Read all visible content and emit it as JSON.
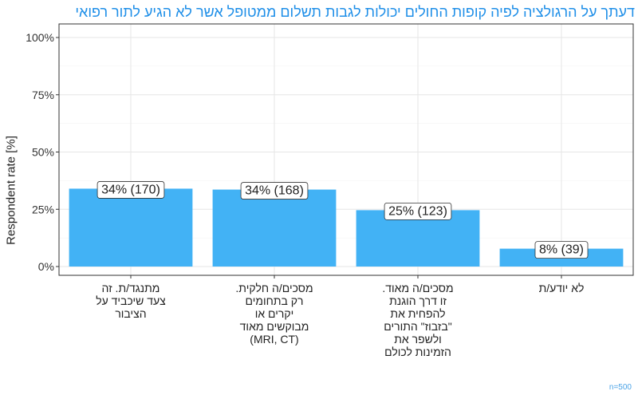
{
  "chart_data": {
    "type": "bar",
    "title": "דעתך על הרגולציה לפיה קופות החולים יכולות לגבות תשלום ממטופל אשר לא הגיע לתור רפואי",
    "ylabel": "Respondent rate [%]",
    "xlabel": "",
    "ylim": [
      0,
      1.05
    ],
    "yticks": [
      "0%",
      "25%",
      "50%",
      "75%",
      "100%"
    ],
    "categories": [
      "מתנגד/ת. זה\nצעד שיכביד על\nהציבור",
      "מסכים/ה חלקית.\nרק בתחומים\nיקרים או\nמבוקשים מאוד\n(MRI, CT)",
      "מסכים/ה מאוד.\nזו דרך הוגנת\nלהפחית את\n\"בזבוז\" התורים\nולשפר את\nהזמינות לכולם",
      "לא יודע/ת"
    ],
    "values": [
      0.34,
      0.336,
      0.246,
      0.078
    ],
    "data_labels": [
      "34% (170)",
      "34% (168)",
      "25% (123)",
      "8% (39)"
    ],
    "bar_color": "#42b2f5",
    "caption": "n=500",
    "grid": true
  }
}
